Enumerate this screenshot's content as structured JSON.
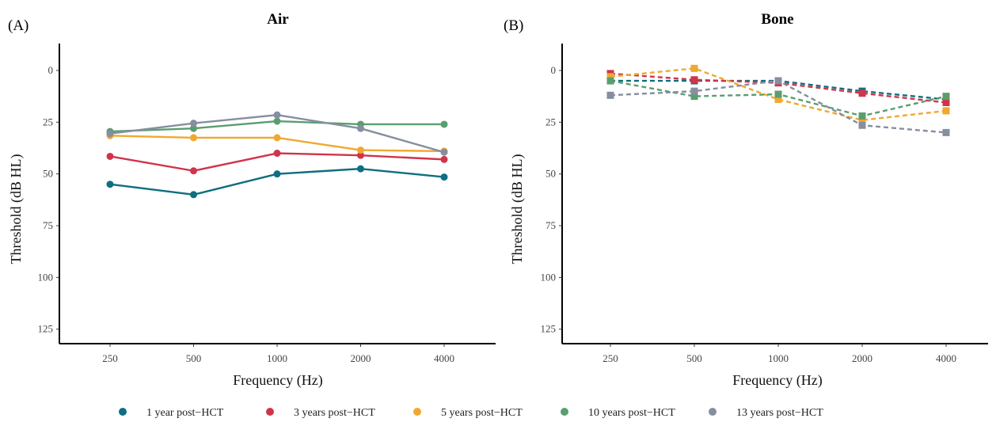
{
  "legend": [
    {
      "label": "1 year post−HCT",
      "color": "#0e6f80"
    },
    {
      "label": "3 years post−HCT",
      "color": "#d0344a"
    },
    {
      "label": "5 years post−HCT",
      "color": "#f0a830"
    },
    {
      "label": "10 years post−HCT",
      "color": "#5a9e6e"
    },
    {
      "label": "13 years post−HCT",
      "color": "#868ea0"
    }
  ],
  "chart_data": [
    {
      "type": "line",
      "panel_label": "(A)",
      "title": "Air",
      "xlabel": "Frequency (Hz)",
      "ylabel": "Threshold (dB HL)",
      "categories": [
        "250",
        "500",
        "1000",
        "2000",
        "4000"
      ],
      "y_ticks": [
        "0",
        "25",
        "50",
        "75",
        "100",
        "125"
      ],
      "ylim": [
        -13,
        132
      ],
      "y_reversed": true,
      "grid": false,
      "line_style": "solid",
      "marker": "circle",
      "legend_position": "bottom",
      "series": [
        {
          "name": "1 year post−HCT",
          "color": "#0e6f80",
          "values": [
            55,
            60,
            50,
            47.5,
            51.5
          ]
        },
        {
          "name": "3 years post−HCT",
          "color": "#d0344a",
          "values": [
            41.5,
            48.5,
            40,
            41,
            43
          ]
        },
        {
          "name": "5 years post−HCT",
          "color": "#f0a830",
          "values": [
            31.5,
            32.5,
            32.5,
            38.5,
            39
          ]
        },
        {
          "name": "10 years post−HCT",
          "color": "#5a9e6e",
          "values": [
            29.5,
            28,
            24.5,
            26,
            26
          ]
        },
        {
          "name": "13 years post−HCT",
          "color": "#868ea0",
          "values": [
            30.5,
            25.5,
            21.5,
            28,
            39.5
          ]
        }
      ]
    },
    {
      "type": "line",
      "panel_label": "(B)",
      "title": "Bone",
      "xlabel": "Frequency (Hz)",
      "ylabel": "Threshold (dB HL)",
      "categories": [
        "250",
        "500",
        "1000",
        "2000",
        "4000"
      ],
      "y_ticks": [
        "0",
        "25",
        "50",
        "75",
        "100",
        "125"
      ],
      "ylim": [
        -13,
        132
      ],
      "y_reversed": true,
      "grid": false,
      "line_style": "dashed",
      "marker": "square",
      "legend_position": "bottom",
      "series": [
        {
          "name": "1 year post−HCT",
          "color": "#0e6f80",
          "values": [
            5,
            5,
            5,
            10,
            14
          ]
        },
        {
          "name": "3 years post−HCT",
          "color": "#d0344a",
          "values": [
            1.5,
            4.5,
            6,
            11,
            15.5
          ]
        },
        {
          "name": "5 years post−HCT",
          "color": "#f0a830",
          "values": [
            3,
            -1,
            14,
            24,
            19.5
          ]
        },
        {
          "name": "10 years post−HCT",
          "color": "#5a9e6e",
          "values": [
            5,
            12.5,
            11.5,
            22,
            12.5
          ]
        },
        {
          "name": "13 years post−HCT",
          "color": "#868ea0",
          "values": [
            12,
            10,
            5,
            26.5,
            30
          ]
        }
      ]
    }
  ]
}
